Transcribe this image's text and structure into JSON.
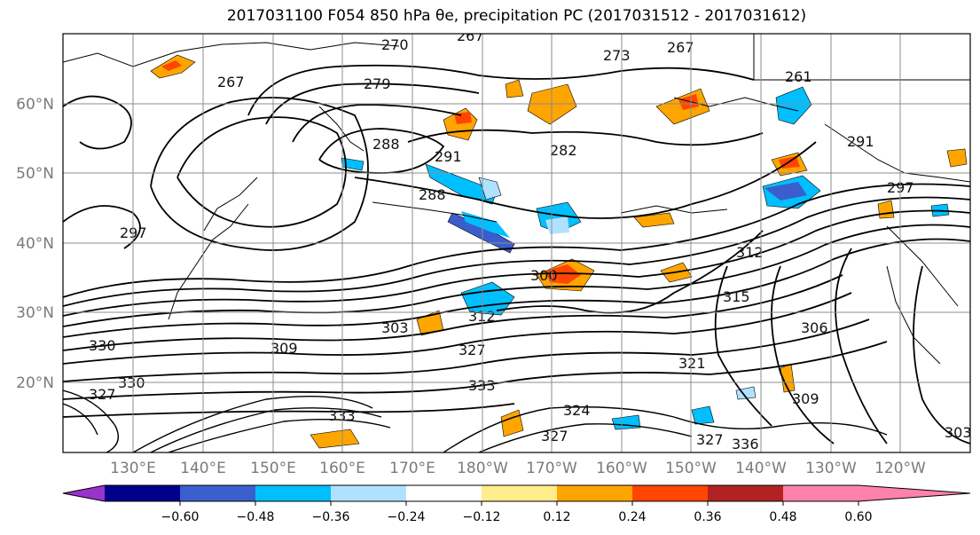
{
  "title": "2017031100 F054 850 hPa θe, precipitation PC (2017031512 - 2017031612)",
  "map": {
    "lat_labels": [
      "60°N",
      "50°N",
      "40°N",
      "30°N",
      "20°N"
    ],
    "lon_labels": [
      "130°E",
      "140°E",
      "150°E",
      "160°E",
      "170°E",
      "180°W",
      "170°W",
      "160°W",
      "150°W",
      "140°W",
      "130°W",
      "120°W"
    ],
    "contour_labels": [
      "270",
      "267",
      "273",
      "267",
      "279",
      "267",
      "261",
      "288",
      "291",
      "282",
      "291",
      "297",
      "288",
      "300",
      "303",
      "312",
      "309",
      "327",
      "330",
      "333",
      "324",
      "327",
      "321",
      "315",
      "306",
      "309",
      "312",
      "327",
      "333",
      "336",
      "327",
      "330",
      "303",
      "297"
    ]
  },
  "colorbar": {
    "colors": [
      "#9a32cd",
      "#00008b",
      "#3a5fcd",
      "#00bfff",
      "#b0e2ff",
      "#ffffff",
      "#ffec8b",
      "#ffa500",
      "#ff4500",
      "#b22222",
      "#ff82ab"
    ],
    "ticks": [
      "−0.60",
      "−0.48",
      "−0.36",
      "−0.24",
      "−0.12",
      "0.12",
      "0.24",
      "0.36",
      "0.48",
      "0.60"
    ]
  }
}
